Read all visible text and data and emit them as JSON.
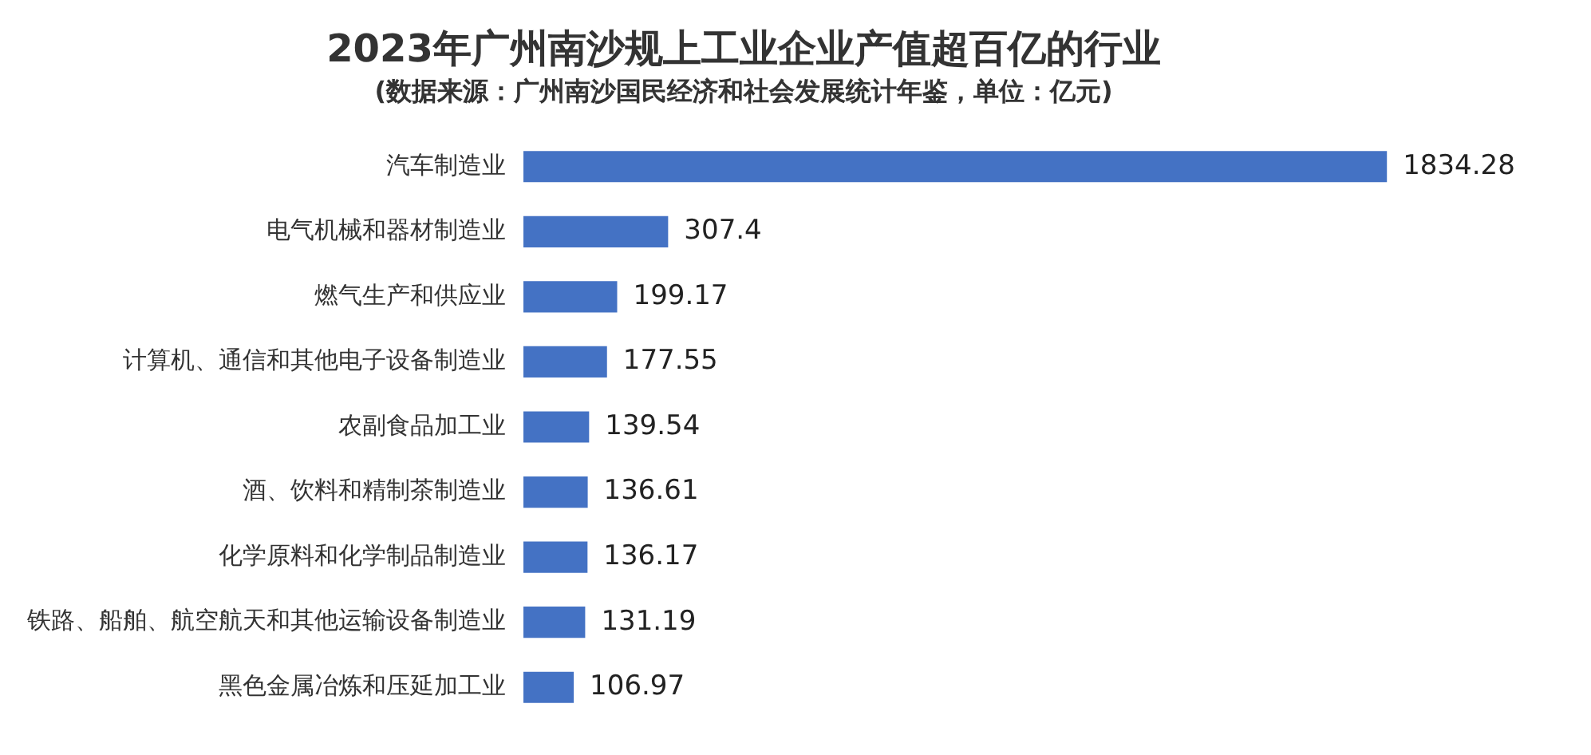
{
  "chart_data": {
    "type": "bar",
    "orientation": "horizontal",
    "title": "2023年广州南沙规上工业企业产值超百亿的行业",
    "subtitle": "(数据来源：广州南沙国民经济和社会发展统计年鉴，单位：亿元)",
    "categories": [
      "汽车制造业",
      "电气机械和器材制造业",
      "燃气生产和供应业",
      "计算机、通信和其他电子设备制造业",
      "农副食品加工业",
      "酒、饮料和精制茶制造业",
      "化学原料和化学制品制造业",
      "铁路、船舶、航空航天和其他运输设备制造业",
      "黑色金属冶炼和压延加工业"
    ],
    "values": [
      1834.28,
      307.4,
      199.17,
      177.55,
      139.54,
      136.61,
      136.17,
      131.19,
      106.97
    ],
    "color": "#4472c4",
    "data_labels": true,
    "legend": false,
    "tick_labels": "y"
  }
}
